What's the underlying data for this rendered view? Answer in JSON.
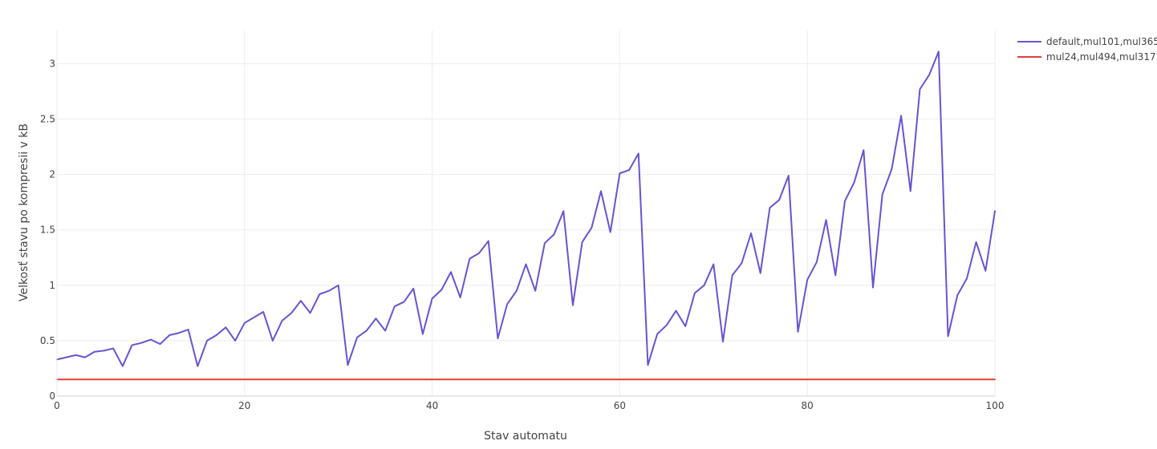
{
  "chart_data": {
    "type": "line",
    "title": "",
    "xlabel": "Stav automatu",
    "ylabel": "Velkosť stavu po kompresii v kB",
    "xlim": [
      0,
      100
    ],
    "ylim": [
      0,
      3.3
    ],
    "x_ticks": [
      0,
      20,
      40,
      60,
      80,
      100
    ],
    "y_ticks": [
      0,
      0.5,
      1,
      1.5,
      2,
      2.5,
      3
    ],
    "grid": true,
    "legend_position": "top-right",
    "x": [
      0,
      1,
      2,
      3,
      4,
      5,
      6,
      7,
      8,
      9,
      10,
      11,
      12,
      13,
      14,
      15,
      16,
      17,
      18,
      19,
      20,
      21,
      22,
      23,
      24,
      25,
      26,
      27,
      28,
      29,
      30,
      31,
      32,
      33,
      34,
      35,
      36,
      37,
      38,
      39,
      40,
      41,
      42,
      43,
      44,
      45,
      46,
      47,
      48,
      49,
      50,
      51,
      52,
      53,
      54,
      55,
      56,
      57,
      58,
      59,
      60,
      61,
      62,
      63,
      64,
      65,
      66,
      67,
      68,
      69,
      70,
      71,
      72,
      73,
      74,
      75,
      76,
      77,
      78,
      79,
      80,
      81,
      82,
      83,
      84,
      85,
      86,
      87,
      88,
      89,
      90,
      91,
      92,
      93,
      94,
      95,
      96,
      97,
      98,
      99,
      100
    ],
    "series": [
      {
        "name": "default,mul101,mul365",
        "color": "#6a52d4",
        "values": [
          0.33,
          0.35,
          0.37,
          0.35,
          0.4,
          0.41,
          0.43,
          0.27,
          0.46,
          0.48,
          0.51,
          0.47,
          0.55,
          0.57,
          0.6,
          0.27,
          0.5,
          0.55,
          0.62,
          0.5,
          0.66,
          0.71,
          0.76,
          0.5,
          0.68,
          0.75,
          0.86,
          0.75,
          0.92,
          0.95,
          1.0,
          0.28,
          0.53,
          0.59,
          0.7,
          0.59,
          0.81,
          0.85,
          0.97,
          0.56,
          0.88,
          0.96,
          1.12,
          0.89,
          1.24,
          1.29,
          1.4,
          0.52,
          0.83,
          0.95,
          1.19,
          0.95,
          1.38,
          1.46,
          1.67,
          0.82,
          1.39,
          1.52,
          1.85,
          1.48,
          2.01,
          2.04,
          2.19,
          0.28,
          0.56,
          0.64,
          0.77,
          0.63,
          0.93,
          1.0,
          1.19,
          0.49,
          1.09,
          1.2,
          1.47,
          1.11,
          1.7,
          1.77,
          1.99,
          0.58,
          1.05,
          1.21,
          1.59,
          1.09,
          1.76,
          1.93,
          2.22,
          0.98,
          1.82,
          2.05,
          2.53,
          1.85,
          2.77,
          2.9,
          3.11,
          0.54,
          0.91,
          1.06,
          1.39,
          1.13,
          1.67
        ]
      },
      {
        "name": "mul24,mul494,mul317",
        "color": "#d9423a",
        "values": [
          0.15,
          0.15,
          0.15,
          0.15,
          0.15,
          0.15,
          0.15,
          0.15,
          0.15,
          0.15,
          0.15,
          0.15,
          0.15,
          0.15,
          0.15,
          0.15,
          0.15,
          0.15,
          0.15,
          0.15,
          0.15,
          0.15,
          0.15,
          0.15,
          0.15,
          0.15,
          0.15,
          0.15,
          0.15,
          0.15,
          0.15,
          0.15,
          0.15,
          0.15,
          0.15,
          0.15,
          0.15,
          0.15,
          0.15,
          0.15,
          0.15,
          0.15,
          0.15,
          0.15,
          0.15,
          0.15,
          0.15,
          0.15,
          0.15,
          0.15,
          0.15,
          0.15,
          0.15,
          0.15,
          0.15,
          0.15,
          0.15,
          0.15,
          0.15,
          0.15,
          0.15,
          0.15,
          0.15,
          0.15,
          0.15,
          0.15,
          0.15,
          0.15,
          0.15,
          0.15,
          0.15,
          0.15,
          0.15,
          0.15,
          0.15,
          0.15,
          0.15,
          0.15,
          0.15,
          0.15,
          0.15,
          0.15,
          0.15,
          0.15,
          0.15,
          0.15,
          0.15,
          0.15,
          0.15,
          0.15,
          0.15,
          0.15,
          0.15,
          0.15,
          0.15,
          0.15,
          0.15,
          0.15,
          0.15,
          0.15,
          0.15
        ]
      }
    ]
  }
}
